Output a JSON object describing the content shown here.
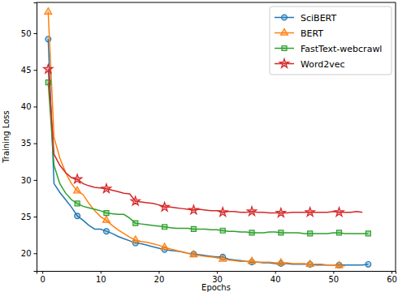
{
  "chart_data": {
    "type": "line",
    "x_label": "Epochs",
    "y_label": "Training Loss",
    "x": [
      1,
      2,
      3,
      4,
      5,
      6,
      7,
      8,
      9,
      10,
      11,
      12,
      13,
      14,
      15,
      16,
      17,
      18,
      19,
      20,
      21,
      22,
      23,
      24,
      25,
      26,
      27,
      28,
      29,
      30,
      31,
      32,
      33,
      34,
      35,
      36,
      37,
      38,
      39,
      40,
      41,
      42,
      43,
      44,
      45,
      46,
      47,
      48,
      49,
      50,
      51,
      52,
      53,
      54,
      55,
      56
    ],
    "series": [
      {
        "name": "SciBERT",
        "color": "#1f77b4",
        "marker": "circle",
        "values": [
          49.2,
          29.5,
          28.3,
          27.3,
          26.3,
          25.1,
          24.5,
          23.8,
          23.3,
          23.3,
          23.0,
          22.7,
          22.3,
          22.0,
          21.7,
          21.4,
          21.3,
          21.1,
          20.9,
          20.7,
          20.5,
          20.4,
          20.3,
          20.2,
          20.0,
          19.9,
          19.8,
          19.7,
          19.6,
          19.5,
          19.5,
          19.2,
          19.1,
          19.0,
          18.9,
          18.8,
          18.8,
          18.7,
          18.7,
          18.6,
          18.6,
          18.6,
          18.5,
          18.5,
          18.5,
          18.5,
          18.4,
          18.4,
          18.4,
          18.4,
          18.4,
          18.4,
          18.4,
          18.4,
          18.4,
          18.5
        ]
      },
      {
        "name": "BERT",
        "color": "#ff7f0e",
        "marker": "triangle",
        "values": [
          52.9,
          35.8,
          33.0,
          31.0,
          29.5,
          28.5,
          28.0,
          26.8,
          25.8,
          25.0,
          24.5,
          23.8,
          23.2,
          22.7,
          22.2,
          21.8,
          21.6,
          21.5,
          21.3,
          21.1,
          20.8,
          20.6,
          20.4,
          20.2,
          20.0,
          19.8,
          19.7,
          19.6,
          19.5,
          19.4,
          19.2,
          19.1,
          19.0,
          18.9,
          18.9,
          18.9,
          18.8,
          18.8,
          18.8,
          18.7,
          18.7,
          18.7,
          18.6,
          18.6,
          18.6,
          18.5,
          18.5,
          18.5,
          18.4,
          18.4,
          18.3,
          18.3,
          null,
          null,
          null,
          null
        ]
      },
      {
        "name": "FastText-webcrawl",
        "color": "#2ca02c",
        "marker": "square",
        "values": [
          43.3,
          32.0,
          29.5,
          28.2,
          27.3,
          26.8,
          26.4,
          26.2,
          26.0,
          25.8,
          25.5,
          25.4,
          25.3,
          25.3,
          24.8,
          24.1,
          24.0,
          23.9,
          23.8,
          23.7,
          23.6,
          23.5,
          23.4,
          23.4,
          23.4,
          23.3,
          23.3,
          23.3,
          23.2,
          23.2,
          23.1,
          23.0,
          23.0,
          22.9,
          22.9,
          22.8,
          22.8,
          22.8,
          22.9,
          22.9,
          22.8,
          22.8,
          22.8,
          22.8,
          22.7,
          22.7,
          22.7,
          22.7,
          22.7,
          22.8,
          22.8,
          22.7,
          22.7,
          22.7,
          22.7,
          22.7
        ]
      },
      {
        "name": "Word2vec",
        "color": "#d62728",
        "marker": "star",
        "values": [
          45.1,
          33.5,
          32.0,
          31.0,
          30.3,
          30.1,
          29.5,
          29.2,
          29.0,
          28.9,
          28.8,
          28.6,
          28.4,
          28.2,
          28.1,
          27.1,
          27.0,
          26.9,
          26.8,
          26.6,
          26.3,
          26.3,
          26.2,
          26.1,
          26.0,
          25.9,
          26.0,
          25.9,
          25.8,
          25.8,
          25.6,
          25.7,
          25.7,
          25.6,
          25.6,
          25.7,
          25.6,
          25.6,
          25.5,
          25.5,
          25.5,
          25.5,
          25.6,
          25.6,
          25.6,
          25.6,
          25.6,
          25.6,
          25.6,
          25.7,
          25.6,
          25.6,
          25.6,
          25.7,
          25.6,
          null
        ]
      }
    ],
    "xlim": [
      -1,
      60.7
    ],
    "xticks": [
      0,
      10,
      20,
      30,
      40,
      50,
      60
    ],
    "ylim": [
      17.6,
      54.2
    ],
    "yticks": [
      20,
      25,
      30,
      35,
      40,
      45,
      50
    ],
    "legend": "upper right",
    "grid": false
  }
}
